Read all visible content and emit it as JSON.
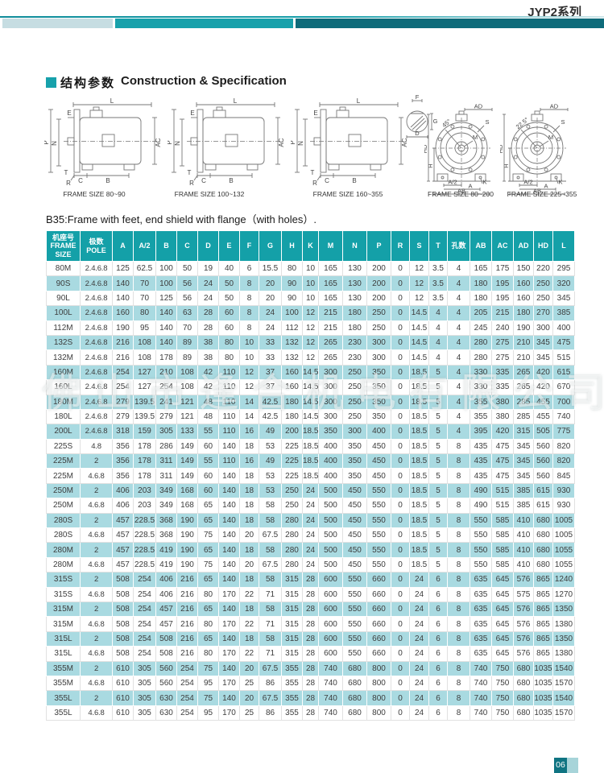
{
  "page": {
    "series_label": "JYP2系列",
    "page_number": "06"
  },
  "section": {
    "title_zh": "结构参数",
    "title_en": "Construction & Specification",
    "note": "B35:Frame with feet, end shield with flange（with holes）."
  },
  "watermark": "佛山市逢合机电有限公司",
  "diagrams": {
    "captions": [
      "FRAME SIZE 80~90",
      "FRAME SIZE 100~132",
      "FRAME SIZE 160~355",
      "FRAME SIZE 80~200",
      "FRAME SIZE 225~355"
    ],
    "side": {
      "L": "L",
      "P": "P",
      "N": "N",
      "E": "E",
      "AC": "AC",
      "T": "T",
      "R": "R",
      "C": "C",
      "B": "B"
    },
    "shaft": {
      "F": "F",
      "G": "G",
      "D": "D"
    },
    "front": {
      "AD": "AD",
      "S": "S",
      "M": "M",
      "HD": "HD",
      "H": "H",
      "A2": "A/2",
      "A": "A",
      "K": "K",
      "AB": "AB"
    },
    "angles": [
      "45°",
      "22.5°"
    ]
  },
  "table": {
    "header": {
      "frame_lines": [
        "机座号",
        "FRAME",
        "SIZE"
      ],
      "pole_lines": [
        "极数",
        "POLE"
      ],
      "dims": [
        "A",
        "A/2",
        "B",
        "C",
        "D",
        "E",
        "F",
        "G",
        "H",
        "K",
        "M",
        "N",
        "P",
        "R",
        "S",
        "T",
        "孔数",
        "AB",
        "AC",
        "AD",
        "HD",
        "L"
      ]
    },
    "rows": [
      [
        "80M",
        "2.4.6.8",
        "125",
        "62.5",
        "100",
        "50",
        "19",
        "40",
        "6",
        "15.5",
        "80",
        "10",
        "165",
        "130",
        "200",
        "0",
        "12",
        "3.5",
        "4",
        "165",
        "175",
        "150",
        "220",
        "295"
      ],
      [
        "90S",
        "2.4.6.8",
        "140",
        "70",
        "100",
        "56",
        "24",
        "50",
        "8",
        "20",
        "90",
        "10",
        "165",
        "130",
        "200",
        "0",
        "12",
        "3.5",
        "4",
        "180",
        "195",
        "160",
        "250",
        "320"
      ],
      [
        "90L",
        "2.4.6.8",
        "140",
        "70",
        "125",
        "56",
        "24",
        "50",
        "8",
        "20",
        "90",
        "10",
        "165",
        "130",
        "200",
        "0",
        "12",
        "3.5",
        "4",
        "180",
        "195",
        "160",
        "250",
        "345"
      ],
      [
        "100L",
        "2.4.6.8",
        "160",
        "80",
        "140",
        "63",
        "28",
        "60",
        "8",
        "24",
        "100",
        "12",
        "215",
        "180",
        "250",
        "0",
        "14.5",
        "4",
        "4",
        "205",
        "215",
        "180",
        "270",
        "385"
      ],
      [
        "112M",
        "2.4.6.8",
        "190",
        "95",
        "140",
        "70",
        "28",
        "60",
        "8",
        "24",
        "112",
        "12",
        "215",
        "180",
        "250",
        "0",
        "14.5",
        "4",
        "4",
        "245",
        "240",
        "190",
        "300",
        "400"
      ],
      [
        "132S",
        "2.4.6.8",
        "216",
        "108",
        "140",
        "89",
        "38",
        "80",
        "10",
        "33",
        "132",
        "12",
        "265",
        "230",
        "300",
        "0",
        "14.5",
        "4",
        "4",
        "280",
        "275",
        "210",
        "345",
        "475"
      ],
      [
        "132M",
        "2.4.6.8",
        "216",
        "108",
        "178",
        "89",
        "38",
        "80",
        "10",
        "33",
        "132",
        "12",
        "265",
        "230",
        "300",
        "0",
        "14.5",
        "4",
        "4",
        "280",
        "275",
        "210",
        "345",
        "515"
      ],
      [
        "160M",
        "2.4.6.8",
        "254",
        "127",
        "210",
        "108",
        "42",
        "110",
        "12",
        "37",
        "160",
        "14.5",
        "300",
        "250",
        "350",
        "0",
        "18.5",
        "5",
        "4",
        "330",
        "335",
        "265",
        "420",
        "615"
      ],
      [
        "160L",
        "2.4.6.8",
        "254",
        "127",
        "254",
        "108",
        "42",
        "110",
        "12",
        "37",
        "160",
        "14.5",
        "300",
        "250",
        "350",
        "0",
        "18.5",
        "5",
        "4",
        "330",
        "335",
        "265",
        "420",
        "670"
      ],
      [
        "180M",
        "2.4.6.8",
        "279",
        "139.5",
        "241",
        "121",
        "48",
        "110",
        "14",
        "42.5",
        "180",
        "14.5",
        "300",
        "250",
        "350",
        "0",
        "18.5",
        "5",
        "4",
        "355",
        "380",
        "285",
        "455",
        "700"
      ],
      [
        "180L",
        "2.4.6.8",
        "279",
        "139.5",
        "279",
        "121",
        "48",
        "110",
        "14",
        "42.5",
        "180",
        "14.5",
        "300",
        "250",
        "350",
        "0",
        "18.5",
        "5",
        "4",
        "355",
        "380",
        "285",
        "455",
        "740"
      ],
      [
        "200L",
        "2.4.6.8",
        "318",
        "159",
        "305",
        "133",
        "55",
        "110",
        "16",
        "49",
        "200",
        "18.5",
        "350",
        "300",
        "400",
        "0",
        "18.5",
        "5",
        "4",
        "395",
        "420",
        "315",
        "505",
        "775"
      ],
      [
        "225S",
        "4.8",
        "356",
        "178",
        "286",
        "149",
        "60",
        "140",
        "18",
        "53",
        "225",
        "18.5",
        "400",
        "350",
        "450",
        "0",
        "18.5",
        "5",
        "8",
        "435",
        "475",
        "345",
        "560",
        "820"
      ],
      [
        "225M",
        "2",
        "356",
        "178",
        "311",
        "149",
        "55",
        "110",
        "16",
        "49",
        "225",
        "18.5",
        "400",
        "350",
        "450",
        "0",
        "18.5",
        "5",
        "8",
        "435",
        "475",
        "345",
        "560",
        "820"
      ],
      [
        "225M",
        "4.6.8",
        "356",
        "178",
        "311",
        "149",
        "60",
        "140",
        "18",
        "53",
        "225",
        "18.5",
        "400",
        "350",
        "450",
        "0",
        "18.5",
        "5",
        "8",
        "435",
        "475",
        "345",
        "560",
        "845"
      ],
      [
        "250M",
        "2",
        "406",
        "203",
        "349",
        "168",
        "60",
        "140",
        "18",
        "53",
        "250",
        "24",
        "500",
        "450",
        "550",
        "0",
        "18.5",
        "5",
        "8",
        "490",
        "515",
        "385",
        "615",
        "930"
      ],
      [
        "250M",
        "4.6.8",
        "406",
        "203",
        "349",
        "168",
        "65",
        "140",
        "18",
        "58",
        "250",
        "24",
        "500",
        "450",
        "550",
        "0",
        "18.5",
        "5",
        "8",
        "490",
        "515",
        "385",
        "615",
        "930"
      ],
      [
        "280S",
        "2",
        "457",
        "228.5",
        "368",
        "190",
        "65",
        "140",
        "18",
        "58",
        "280",
        "24",
        "500",
        "450",
        "550",
        "0",
        "18.5",
        "5",
        "8",
        "550",
        "585",
        "410",
        "680",
        "1005"
      ],
      [
        "280S",
        "4.6.8",
        "457",
        "228.5",
        "368",
        "190",
        "75",
        "140",
        "20",
        "67.5",
        "280",
        "24",
        "500",
        "450",
        "550",
        "0",
        "18.5",
        "5",
        "8",
        "550",
        "585",
        "410",
        "680",
        "1005"
      ],
      [
        "280M",
        "2",
        "457",
        "228.5",
        "419",
        "190",
        "65",
        "140",
        "18",
        "58",
        "280",
        "24",
        "500",
        "450",
        "550",
        "0",
        "18.5",
        "5",
        "8",
        "550",
        "585",
        "410",
        "680",
        "1055"
      ],
      [
        "280M",
        "4.6.8",
        "457",
        "228.5",
        "419",
        "190",
        "75",
        "140",
        "20",
        "67.5",
        "280",
        "24",
        "500",
        "450",
        "550",
        "0",
        "18.5",
        "5",
        "8",
        "550",
        "585",
        "410",
        "680",
        "1055"
      ],
      [
        "315S",
        "2",
        "508",
        "254",
        "406",
        "216",
        "65",
        "140",
        "18",
        "58",
        "315",
        "28",
        "600",
        "550",
        "660",
        "0",
        "24",
        "6",
        "8",
        "635",
        "645",
        "576",
        "865",
        "1240"
      ],
      [
        "315S",
        "4.6.8",
        "508",
        "254",
        "406",
        "216",
        "80",
        "170",
        "22",
        "71",
        "315",
        "28",
        "600",
        "550",
        "660",
        "0",
        "24",
        "6",
        "8",
        "635",
        "645",
        "575",
        "865",
        "1270"
      ],
      [
        "315M",
        "2",
        "508",
        "254",
        "457",
        "216",
        "65",
        "140",
        "18",
        "58",
        "315",
        "28",
        "600",
        "550",
        "660",
        "0",
        "24",
        "6",
        "8",
        "635",
        "645",
        "576",
        "865",
        "1350"
      ],
      [
        "315M",
        "4.6.8",
        "508",
        "254",
        "457",
        "216",
        "80",
        "170",
        "22",
        "71",
        "315",
        "28",
        "600",
        "550",
        "660",
        "0",
        "24",
        "6",
        "8",
        "635",
        "645",
        "576",
        "865",
        "1380"
      ],
      [
        "315L",
        "2",
        "508",
        "254",
        "508",
        "216",
        "65",
        "140",
        "18",
        "58",
        "315",
        "28",
        "600",
        "550",
        "660",
        "0",
        "24",
        "6",
        "8",
        "635",
        "645",
        "576",
        "865",
        "1350"
      ],
      [
        "315L",
        "4.6.8",
        "508",
        "254",
        "508",
        "216",
        "80",
        "170",
        "22",
        "71",
        "315",
        "28",
        "600",
        "550",
        "660",
        "0",
        "24",
        "6",
        "8",
        "635",
        "645",
        "576",
        "865",
        "1380"
      ],
      [
        "355M",
        "2",
        "610",
        "305",
        "560",
        "254",
        "75",
        "140",
        "20",
        "67.5",
        "355",
        "28",
        "740",
        "680",
        "800",
        "0",
        "24",
        "6",
        "8",
        "740",
        "750",
        "680",
        "1035",
        "1540"
      ],
      [
        "355M",
        "4.6.8",
        "610",
        "305",
        "560",
        "254",
        "95",
        "170",
        "25",
        "86",
        "355",
        "28",
        "740",
        "680",
        "800",
        "0",
        "24",
        "6",
        "8",
        "740",
        "750",
        "680",
        "1035",
        "1570"
      ],
      [
        "355L",
        "2",
        "610",
        "305",
        "630",
        "254",
        "75",
        "140",
        "20",
        "67.5",
        "355",
        "28",
        "740",
        "680",
        "800",
        "0",
        "24",
        "6",
        "8",
        "740",
        "750",
        "680",
        "1035",
        "1540"
      ],
      [
        "355L",
        "4.6.8",
        "610",
        "305",
        "630",
        "254",
        "95",
        "170",
        "25",
        "86",
        "355",
        "28",
        "740",
        "680",
        "800",
        "0",
        "24",
        "6",
        "8",
        "740",
        "750",
        "680",
        "1035",
        "1570"
      ]
    ]
  },
  "colors": {
    "teal": "#14a0a8",
    "teal_dark": "#0e6b7a",
    "teal_light": "#c6dde2",
    "row_alt": "#a9dae1"
  }
}
